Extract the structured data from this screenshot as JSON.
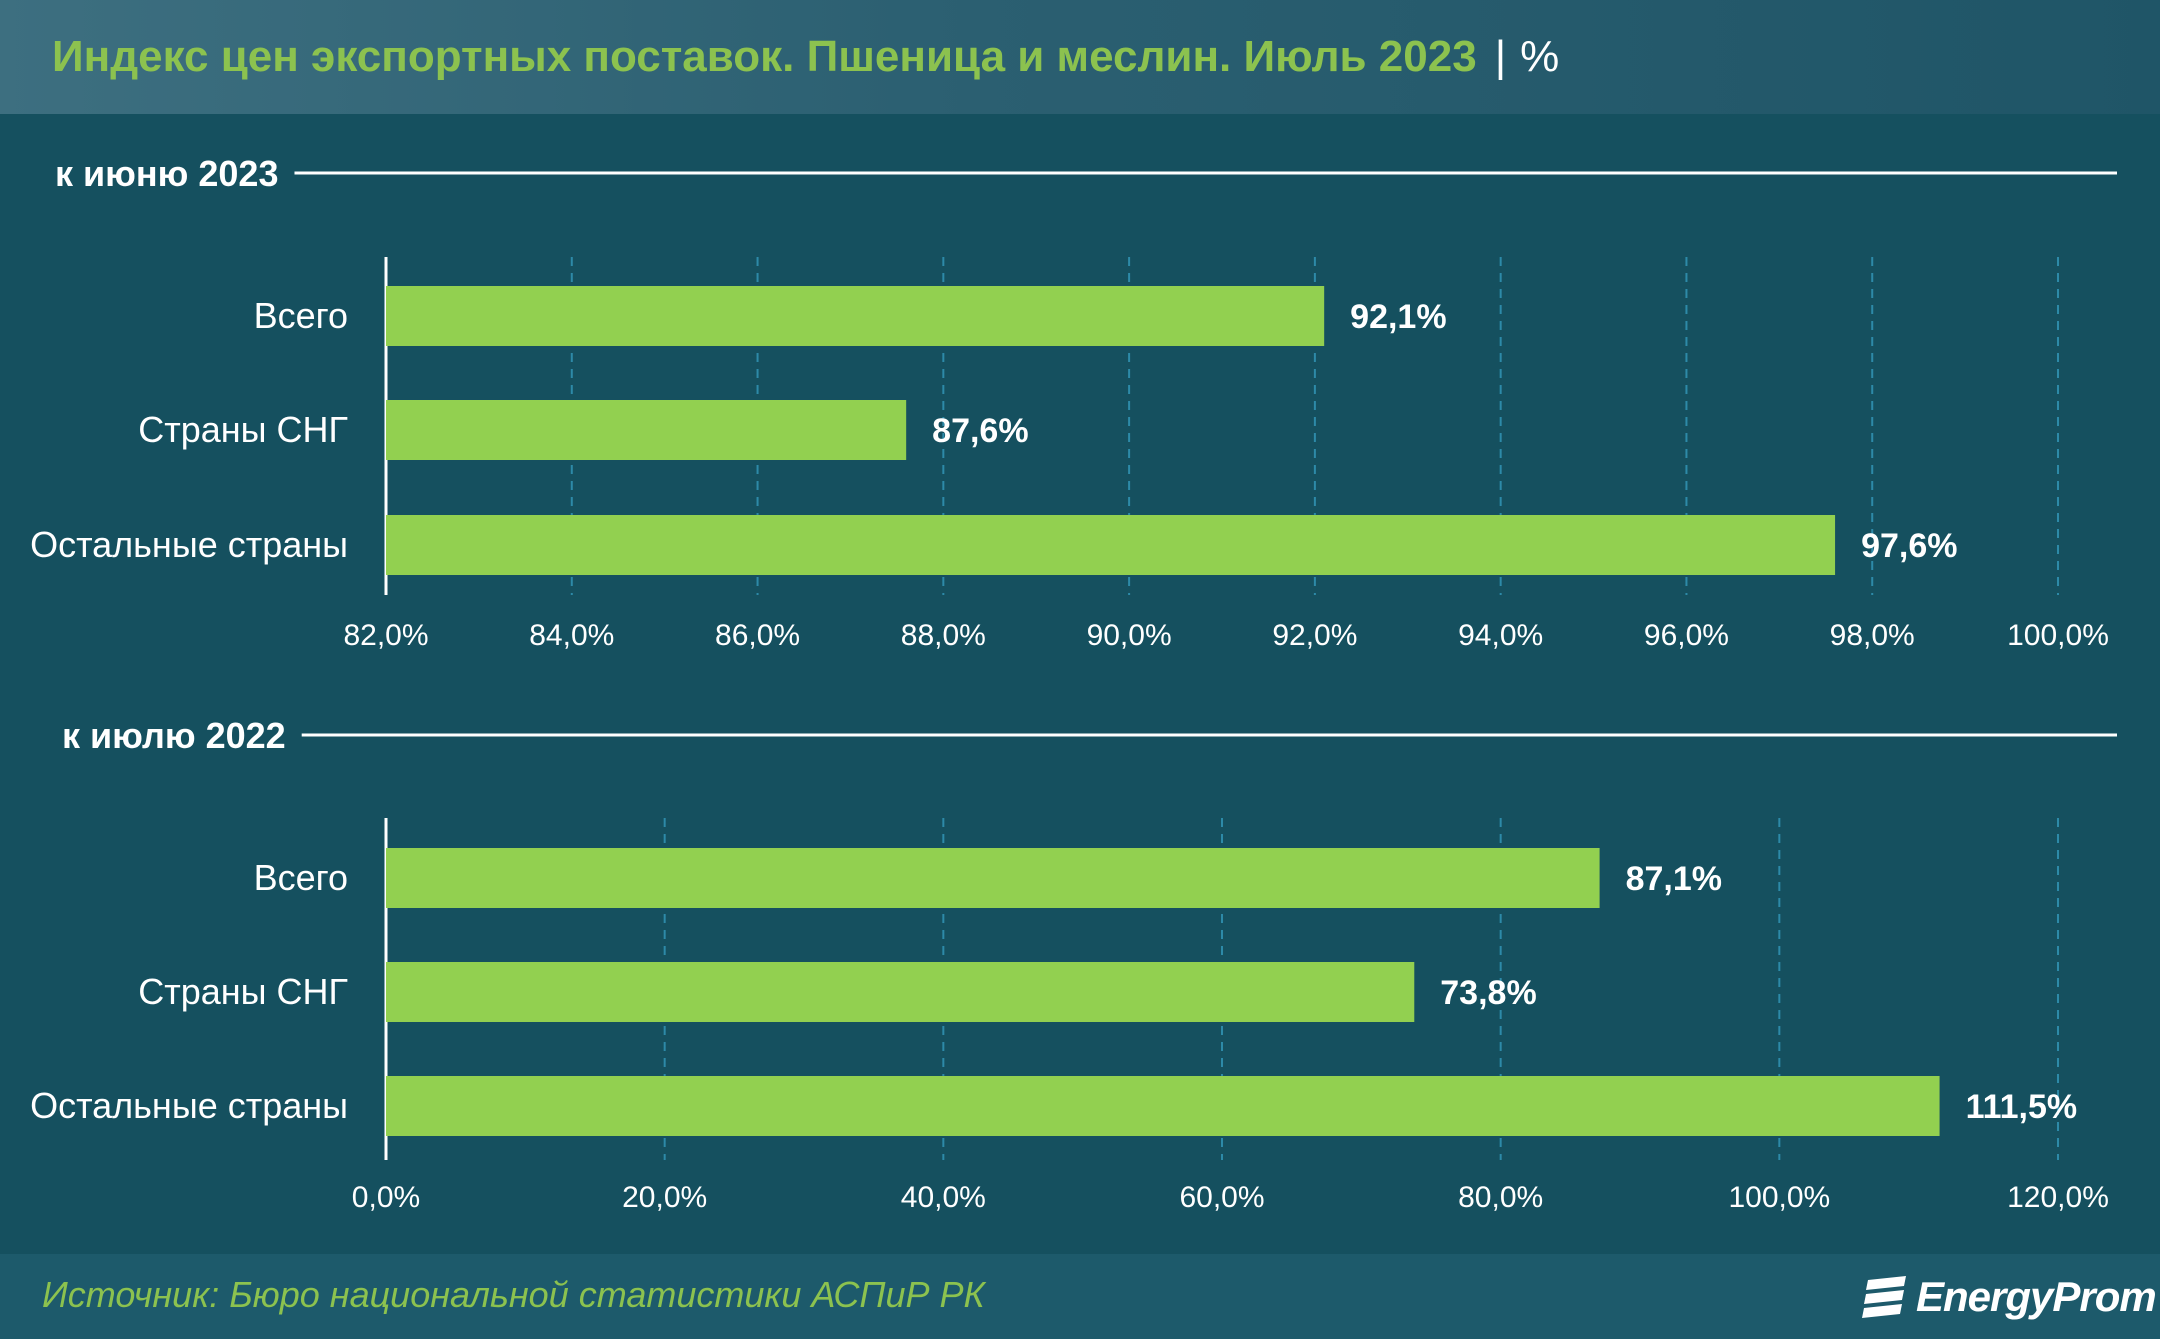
{
  "title": "Индекс цен экспортных поставок. Пшеница и меслин. Июль 2023",
  "title_separator": "|",
  "title_unit": "%",
  "source": "Источник: Бюро национальной статистики АСПиР РК",
  "logo_text": "EnergyProm",
  "colors": {
    "bar": "#92d050",
    "background": "#15505f",
    "header": "#2b5f71",
    "title": "#8cc24f",
    "grid": "#2d8aa8",
    "text": "#ffffff"
  },
  "chart_data": [
    {
      "type": "bar",
      "orientation": "horizontal",
      "title": "к июню 2023",
      "categories": [
        "Всего",
        "Страны СНГ",
        "Остальные страны"
      ],
      "values": [
        92.1,
        87.6,
        97.6
      ],
      "value_labels": [
        "92,1%",
        "87,6%",
        "97,6%"
      ],
      "xlim": [
        82,
        100
      ],
      "ticks": [
        82,
        84,
        86,
        88,
        90,
        92,
        94,
        96,
        98,
        100
      ],
      "tick_labels": [
        "82,0%",
        "84,0%",
        "86,0%",
        "88,0%",
        "90,0%",
        "92,0%",
        "94,0%",
        "96,0%",
        "98,0%",
        "100,0%"
      ],
      "grid": true,
      "grid_style": "dashed vertical"
    },
    {
      "type": "bar",
      "orientation": "horizontal",
      "title": "к июлю 2022",
      "categories": [
        "Всего",
        "Страны СНГ",
        "Остальные страны"
      ],
      "values": [
        87.1,
        73.8,
        111.5
      ],
      "value_labels": [
        "87,1%",
        "73,8%",
        "111,5%"
      ],
      "xlim": [
        0,
        120
      ],
      "ticks": [
        0,
        20,
        40,
        60,
        80,
        100,
        120
      ],
      "tick_labels": [
        "0,0%",
        "20,0%",
        "40,0%",
        "60,0%",
        "80,0%",
        "100,0%",
        "120,0%"
      ],
      "grid": true,
      "grid_style": "dashed vertical"
    }
  ]
}
